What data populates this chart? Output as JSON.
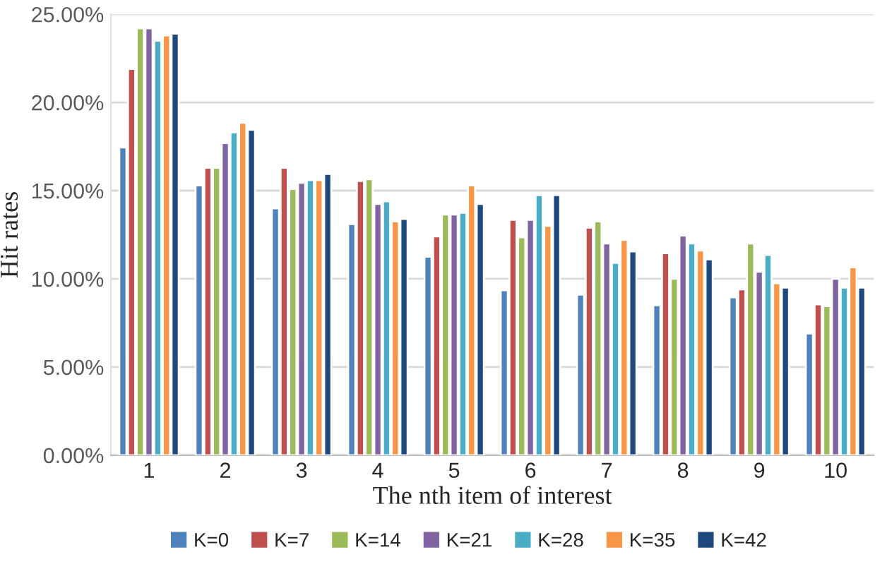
{
  "chart_data": {
    "type": "bar",
    "xlabel": "The nth item of interest",
    "ylabel": "Hit rates",
    "categories": [
      "1",
      "2",
      "3",
      "4",
      "5",
      "6",
      "7",
      "8",
      "9",
      "10"
    ],
    "series": [
      {
        "name": "K=0",
        "color": "#4f81bd",
        "values": [
          17.45,
          15.3,
          14.0,
          13.1,
          11.25,
          9.35,
          9.1,
          8.5,
          8.95,
          6.9
        ]
      },
      {
        "name": "K=7",
        "color": "#c0504d",
        "values": [
          21.9,
          16.3,
          16.3,
          15.55,
          12.4,
          13.35,
          12.9,
          11.45,
          9.4,
          8.55
        ]
      },
      {
        "name": "K=14",
        "color": "#9bbb59",
        "values": [
          24.2,
          16.3,
          15.1,
          15.65,
          13.65,
          12.35,
          13.25,
          10.0,
          12.0,
          8.45
        ]
      },
      {
        "name": "K=21",
        "color": "#8064a2",
        "values": [
          24.2,
          17.7,
          15.45,
          14.25,
          13.65,
          13.35,
          12.0,
          12.45,
          10.4,
          10.0
        ]
      },
      {
        "name": "K=28",
        "color": "#4bacc6",
        "values": [
          23.5,
          18.3,
          15.6,
          14.4,
          13.75,
          14.75,
          10.9,
          12.0,
          11.35,
          9.5
        ]
      },
      {
        "name": "K=35",
        "color": "#f79646",
        "values": [
          23.8,
          18.85,
          15.6,
          13.25,
          15.3,
          13.0,
          12.2,
          11.6,
          9.75,
          10.65
        ]
      },
      {
        "name": "K=42",
        "color": "#1f497d",
        "values": [
          23.9,
          18.45,
          15.95,
          13.4,
          14.25,
          14.75,
          11.55,
          11.1,
          9.5,
          9.5
        ]
      }
    ],
    "ylim": [
      0,
      25
    ],
    "yticks": [
      {
        "value": 0,
        "label": "0.00%"
      },
      {
        "value": 5,
        "label": "5.00%"
      },
      {
        "value": 10,
        "label": "10.00%"
      },
      {
        "value": 15,
        "label": "15.00%"
      },
      {
        "value": 20,
        "label": "20.00%"
      },
      {
        "value": 25,
        "label": "25.00%"
      }
    ],
    "grid": "y",
    "legend": "bottom"
  }
}
